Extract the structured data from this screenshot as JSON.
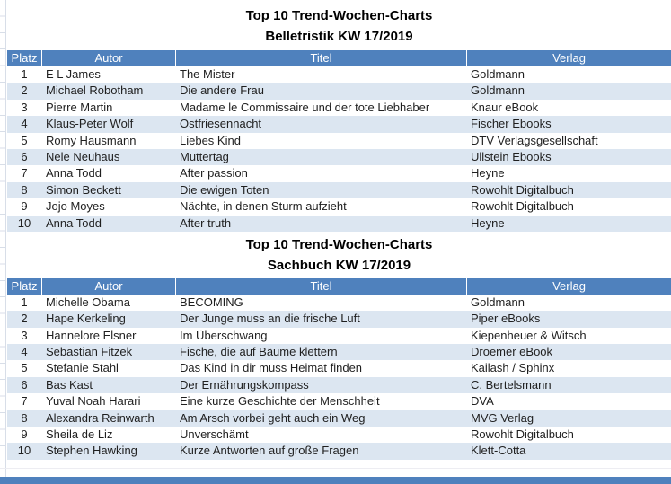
{
  "colors": {
    "header_bg": "#4F81BD",
    "band_bg": "#DCE6F1",
    "gridline": "#D8DEE8",
    "header_text": "#FFFFFF",
    "cell_text": "#1F1F1F",
    "title_text": "#000000"
  },
  "tables": [
    {
      "title_line1": "Top 10 Trend-Wochen-Charts",
      "title_line2": "Belletristik KW 17/2019",
      "columns": [
        "Platz",
        "Autor",
        "Titel",
        "Verlag"
      ],
      "rows": [
        [
          "1",
          "E L James",
          "The Mister",
          "Goldmann"
        ],
        [
          "2",
          "Michael Robotham",
          "Die andere Frau",
          "Goldmann"
        ],
        [
          "3",
          "Pierre Martin",
          "Madame le Commissaire und der tote Liebhaber",
          "Knaur eBook"
        ],
        [
          "4",
          "Klaus-Peter Wolf",
          "Ostfriesennacht",
          "Fischer Ebooks"
        ],
        [
          "5",
          "Romy Hausmann",
          "Liebes Kind",
          "DTV Verlagsgesellschaft"
        ],
        [
          "6",
          "Nele Neuhaus",
          "Muttertag",
          "Ullstein Ebooks"
        ],
        [
          "7",
          "Anna Todd",
          "After passion",
          "Heyne"
        ],
        [
          "8",
          "Simon Beckett",
          "Die ewigen Toten",
          "Rowohlt Digitalbuch"
        ],
        [
          "9",
          "Jojo Moyes",
          "Nächte, in denen Sturm aufzieht",
          "Rowohlt Digitalbuch"
        ],
        [
          "10",
          "Anna Todd",
          "After truth",
          "Heyne"
        ]
      ]
    },
    {
      "title_line1": "Top 10 Trend-Wochen-Charts",
      "title_line2": "Sachbuch KW 17/2019",
      "columns": [
        "Platz",
        "Autor",
        "Titel",
        "Verlag"
      ],
      "rows": [
        [
          "1",
          "Michelle Obama",
          "BECOMING",
          "Goldmann"
        ],
        [
          "2",
          "Hape Kerkeling",
          "Der Junge muss an die frische Luft",
          "Piper eBooks"
        ],
        [
          "3",
          "Hannelore Elsner",
          "Im Überschwang",
          "Kiepenheuer & Witsch"
        ],
        [
          "4",
          "Sebastian Fitzek",
          "Fische, die auf Bäume klettern",
          "Droemer eBook"
        ],
        [
          "5",
          "Stefanie Stahl",
          "Das Kind in dir muss Heimat finden",
          "Kailash / Sphinx"
        ],
        [
          "6",
          "Bas Kast",
          "Der Ernährungskompass",
          "C. Bertelsmann"
        ],
        [
          "7",
          "Yuval Noah Harari",
          "Eine kurze Geschichte der Menschheit",
          "DVA"
        ],
        [
          "8",
          "Alexandra Reinwarth",
          "Am Arsch vorbei geht auch ein Weg",
          "MVG Verlag"
        ],
        [
          "9",
          "Sheila de Liz",
          "Unverschämt",
          "Rowohlt Digitalbuch"
        ],
        [
          "10",
          "Stephen Hawking",
          "Kurze Antworten auf große Fragen",
          "Klett-Cotta"
        ]
      ]
    }
  ]
}
